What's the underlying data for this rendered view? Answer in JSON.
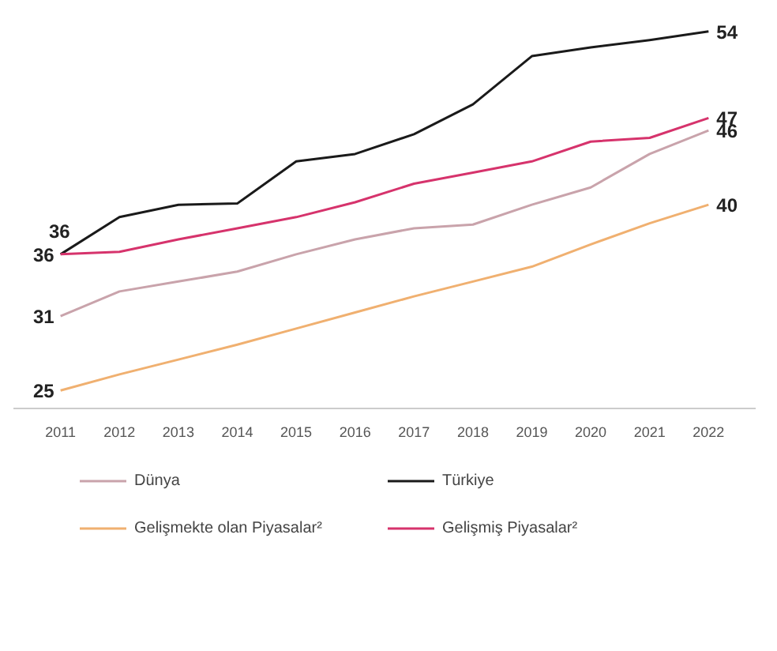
{
  "chart_data": {
    "type": "line",
    "categories": [
      "2011",
      "2012",
      "2013",
      "2014",
      "2015",
      "2016",
      "2017",
      "2018",
      "2019",
      "2020",
      "2021",
      "2022"
    ],
    "tick_labels": "x",
    "grid": false,
    "legend": "bottom",
    "marker": "none",
    "line_style": "solid",
    "series": [
      {
        "name": "Dünya",
        "color": "#c9a3ab",
        "values": [
          31,
          33,
          33.8,
          34.6,
          36,
          37.2,
          38.1,
          38.4,
          40,
          41.4,
          44.1,
          46
        ],
        "value_labels": [
          "31",
          null,
          null,
          null,
          null,
          null,
          null,
          null,
          null,
          null,
          null,
          "46"
        ]
      },
      {
        "name": "Türkiye",
        "color": "#1a1a1a",
        "values": [
          36,
          39,
          40,
          40.1,
          43.5,
          44.1,
          45.7,
          48.1,
          52,
          52.7,
          53.3,
          54
        ],
        "value_labels": [
          "36",
          null,
          null,
          null,
          null,
          null,
          null,
          null,
          null,
          null,
          null,
          "54"
        ]
      },
      {
        "name": "Gelişmekte olan Piyasalar²",
        "color": "#f0b070",
        "values": [
          25,
          26.3,
          27.5,
          28.7,
          30,
          31.3,
          32.6,
          33.8,
          35,
          36.8,
          38.5,
          40
        ],
        "value_labels": [
          "25",
          null,
          null,
          null,
          null,
          null,
          null,
          null,
          null,
          null,
          null,
          "40"
        ]
      },
      {
        "name": "Gelişmiş Piyasalar²",
        "color": "#d6336c",
        "values": [
          36,
          36.2,
          37.2,
          38.1,
          39,
          40.2,
          41.7,
          42.6,
          43.5,
          45.1,
          45.4,
          47
        ],
        "value_labels": [
          "36",
          null,
          null,
          null,
          null,
          null,
          null,
          null,
          null,
          null,
          null,
          "47"
        ]
      }
    ]
  }
}
